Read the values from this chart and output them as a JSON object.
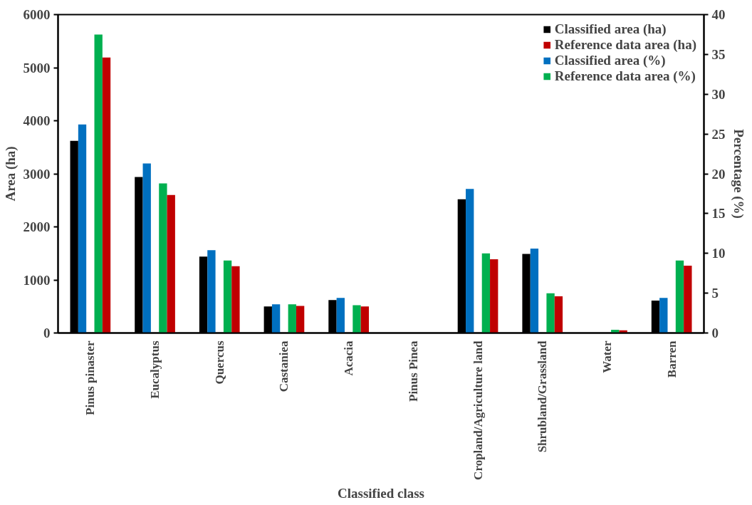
{
  "chart_data": {
    "type": "bar",
    "xlabel": "Classified class",
    "ylabel": "Area (ha)",
    "y2label": "Percentage (%)",
    "categories": [
      "Pinus pinaster",
      "Eucalyptus",
      "Quercus",
      "Castaniea",
      "Acacia",
      "Pinus Pinea",
      "Cropland/Agriculture land",
      "Shrubland/Grassland",
      "Water",
      "Barren"
    ],
    "series": [
      {
        "name": "Classified area (ha)",
        "color": "#000000",
        "values": [
          3620,
          2940,
          1440,
          500,
          620,
          null,
          2520,
          1490,
          null,
          610
        ]
      },
      {
        "name": "Classified area (%)",
        "color": "#0070c0",
        "axis": "y2",
        "values": [
          26.2,
          21.3,
          10.4,
          3.6,
          4.4,
          null,
          18.1,
          10.6,
          null,
          4.4
        ]
      },
      {
        "name": "Reference data area (%)",
        "color": "#00b050",
        "axis": "y2",
        "values": [
          37.5,
          18.8,
          9.1,
          3.6,
          3.5,
          0,
          10.0,
          5.0,
          0.4,
          9.1
        ]
      },
      {
        "name": "Reference data area (ha)",
        "color": "#c00000",
        "values": [
          5190,
          2600,
          1260,
          510,
          500,
          0,
          1390,
          690,
          50,
          1270
        ]
      }
    ],
    "ylim": [
      0,
      6000
    ],
    "yticks": [
      0,
      1000,
      2000,
      3000,
      4000,
      5000,
      6000
    ],
    "y2lim": [
      0,
      40
    ],
    "y2ticks": [
      0,
      5,
      10,
      15,
      20,
      25,
      30,
      35,
      40
    ],
    "legend": "top right"
  }
}
